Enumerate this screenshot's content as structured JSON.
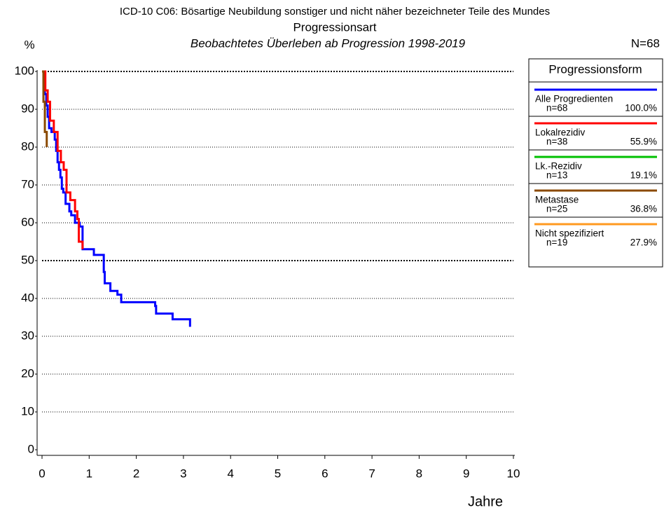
{
  "chart_data": {
    "type": "step",
    "title": "ICD-10 C06: Bösartige Neubildung sonstiger und nicht näher bezeichneter Teile des Mundes",
    "subtitle": "Progressionsart",
    "subtitle2": "Beobachtetes Überleben ab Progression 1998-2019",
    "total": "N=68",
    "y_label": "%",
    "x_label": "Jahre",
    "legend_title": "Progressionsform",
    "xlim": [
      0,
      10
    ],
    "xticks": [
      0,
      1,
      2,
      3,
      4,
      5,
      6,
      7,
      8,
      9,
      10
    ],
    "ylim": [
      0,
      100
    ],
    "yticks": [
      0,
      10,
      20,
      30,
      40,
      50,
      60,
      70,
      80,
      90,
      100
    ],
    "bold_grid": [
      50,
      100
    ],
    "grid": true,
    "series": [
      {
        "name": "Alle Progredienten",
        "n_label": "n=68",
        "percent": "100.0%",
        "color": "#0000ff",
        "x": [
          0,
          0.03,
          0.06,
          0.09,
          0.12,
          0.15,
          0.2,
          0.27,
          0.3,
          0.33,
          0.36,
          0.39,
          0.42,
          0.45,
          0.5,
          0.58,
          0.62,
          0.7,
          0.8,
          0.86,
          1.1,
          1.31,
          1.33,
          1.45,
          1.6,
          1.68,
          2.4,
          2.42,
          2.77,
          3.14,
          3.14
        ],
        "values": [
          100,
          97,
          94,
          91,
          88,
          85,
          84,
          82,
          79,
          76,
          74,
          72,
          69,
          68,
          65,
          63,
          62,
          60,
          59,
          53,
          51.5,
          47,
          44,
          42,
          41,
          39,
          38,
          36,
          34.5,
          34.5,
          32.5
        ]
      },
      {
        "name": "Lokalrezidiv",
        "n_label": "n=38",
        "percent": "55.9%",
        "color": "#ff0000",
        "x": [
          0,
          0.07,
          0.12,
          0.17,
          0.25,
          0.33,
          0.4,
          0.46,
          0.52,
          0.6,
          0.7,
          0.75,
          0.78,
          0.86
        ],
        "values": [
          100,
          95,
          92,
          87,
          84,
          79,
          76,
          74,
          68,
          66,
          63,
          61,
          55,
          53
        ]
      },
      {
        "name": "Lk.-Rezidiv",
        "n_label": "n=13",
        "percent": "19.1%",
        "color": "#00c000",
        "x": [
          0
        ],
        "values": [
          100
        ]
      },
      {
        "name": "Metastase",
        "n_label": "n=25",
        "percent": "36.8%",
        "color": "#8b4a00",
        "x": [
          0,
          0.03,
          0.06,
          0.1
        ],
        "values": [
          100,
          92,
          84,
          80
        ]
      },
      {
        "name": "Nicht spezifiziert",
        "n_label": "n=19",
        "percent": "27.9%",
        "color": "#ff9a20",
        "x": [
          0
        ],
        "values": [
          100
        ]
      }
    ]
  }
}
